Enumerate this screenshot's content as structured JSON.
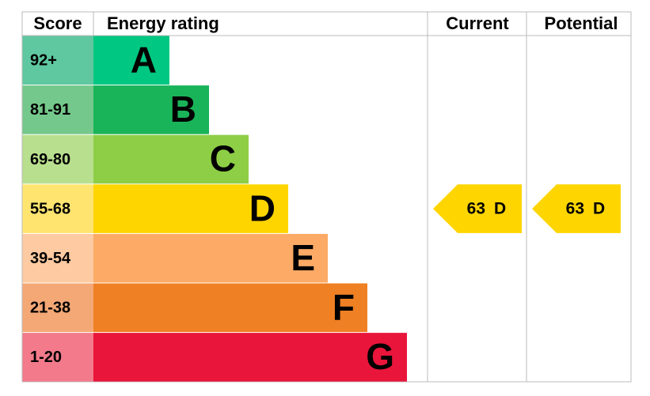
{
  "header": {
    "score": "Score",
    "rating": "Energy rating",
    "current": "Current",
    "potential": "Potential"
  },
  "bands": [
    {
      "score": "92+",
      "letter": "A",
      "color": "#00c781",
      "score_color": "#5fc8a0"
    },
    {
      "score": "81-91",
      "letter": "B",
      "color": "#19b459",
      "score_color": "#75c88b"
    },
    {
      "score": "69-80",
      "letter": "C",
      "color": "#8dce46",
      "score_color": "#b8df8e"
    },
    {
      "score": "55-68",
      "letter": "D",
      "color": "#ffd500",
      "score_color": "#ffe470"
    },
    {
      "score": "39-54",
      "letter": "E",
      "color": "#fcaa65",
      "score_color": "#fdcaa2"
    },
    {
      "score": "21-38",
      "letter": "F",
      "color": "#ef8023",
      "score_color": "#f4a876"
    },
    {
      "score": "1-20",
      "letter": "G",
      "color": "#e9153b",
      "score_color": "#f27a8a"
    }
  ],
  "current": {
    "value": 63,
    "rating": "D"
  },
  "potential": {
    "value": 63,
    "rating": "D"
  }
}
